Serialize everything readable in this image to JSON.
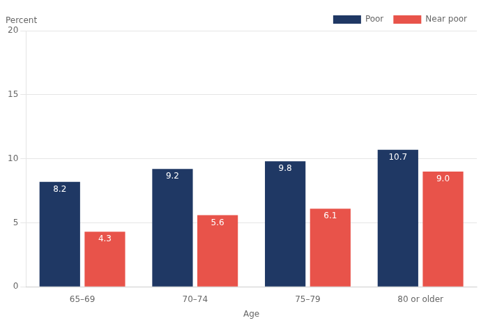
{
  "chart_data": {
    "type": "bar",
    "categories": [
      "65–69",
      "70–74",
      "75–79",
      "80 or older"
    ],
    "series": [
      {
        "name": "Poor",
        "color": "#1f3864",
        "values": [
          8.2,
          9.2,
          9.8,
          10.7
        ]
      },
      {
        "name": "Near poor",
        "color": "#e8534a",
        "values": [
          4.3,
          5.6,
          6.1,
          9.0
        ],
        "value_labels": [
          "4.3",
          "5.6",
          "6.1",
          "9.0"
        ]
      }
    ],
    "xlabel": "Age",
    "ylabel": "Percent",
    "ylim": [
      0,
      20
    ],
    "yticks": [
      0,
      5,
      10,
      15,
      20
    ],
    "grid": true,
    "legend": "upper right",
    "data_labels": true
  }
}
